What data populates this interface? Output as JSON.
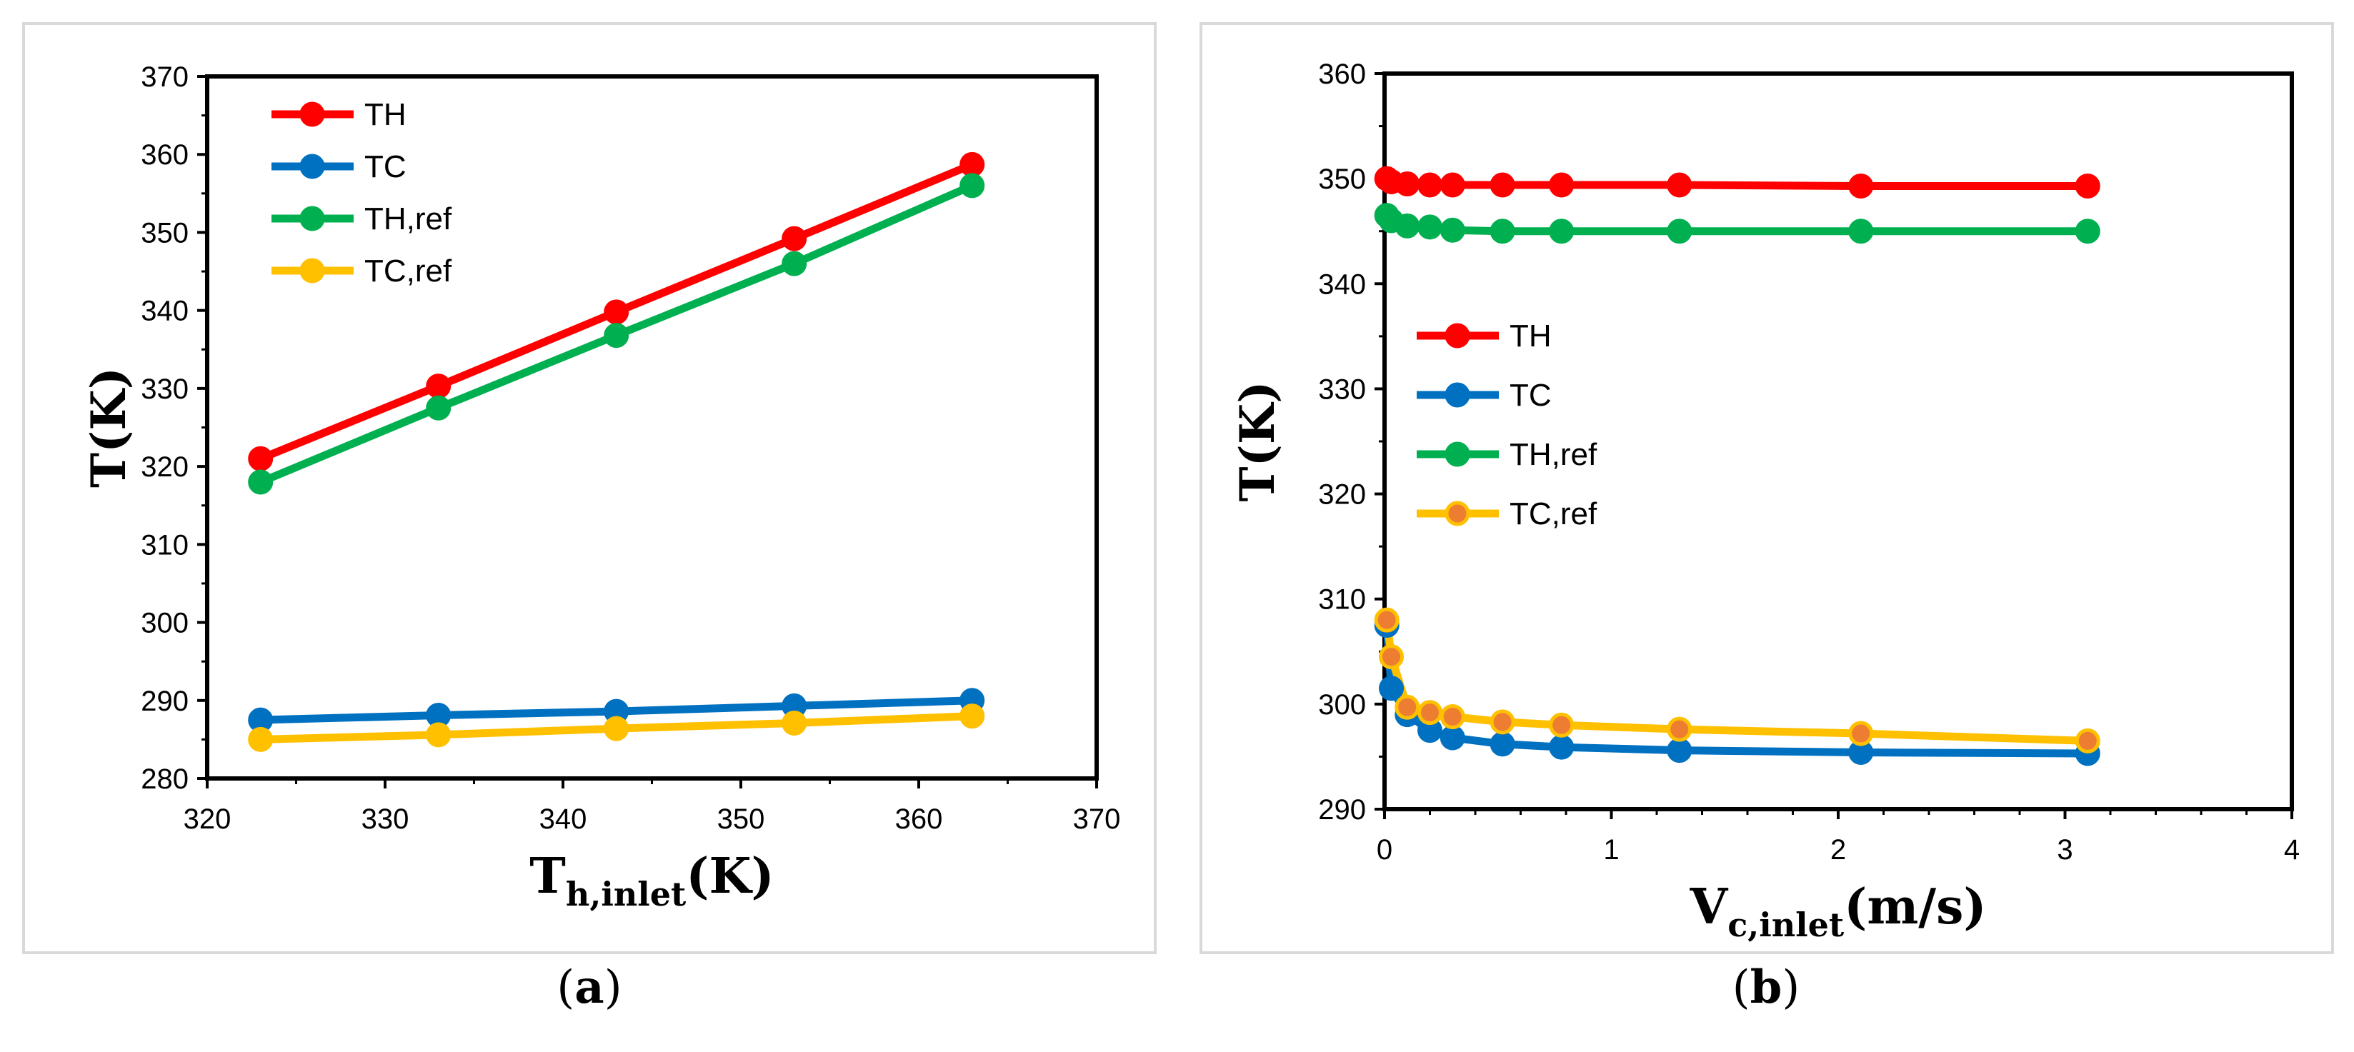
{
  "panels": [
    {
      "id": "a",
      "caption_letter": "a",
      "chart_data": {
        "type": "line",
        "xlabel": "T",
        "xlabel_sub": "h,inlet",
        "xlabel_unit": "(K)",
        "ylabel": "T(K)",
        "xlim": [
          320,
          370
        ],
        "ylim": [
          280,
          370
        ],
        "xticks": [
          320,
          330,
          340,
          350,
          360,
          370
        ],
        "yticks": [
          280,
          290,
          300,
          310,
          320,
          330,
          340,
          350,
          360,
          370
        ],
        "legend_position": "top-left",
        "series": [
          {
            "name": "TH",
            "color": "#ff0000",
            "x": [
              323,
              333,
              343,
              353,
              363
            ],
            "y": [
              321,
              330.3,
              339.8,
              349.2,
              358.7
            ]
          },
          {
            "name": "TC",
            "color": "#0070c0",
            "x": [
              323,
              333,
              343,
              353,
              363
            ],
            "y": [
              287.5,
              288.1,
              288.6,
              289.3,
              290.0
            ]
          },
          {
            "name": "TH,ref",
            "color": "#00b050",
            "x": [
              323,
              333,
              343,
              353,
              363
            ],
            "y": [
              318,
              327.5,
              336.8,
              346.0,
              356.0
            ]
          },
          {
            "name": "TC,ref",
            "color": "#ffc000",
            "x": [
              323,
              333,
              343,
              353,
              363
            ],
            "y": [
              285,
              285.6,
              286.4,
              287.1,
              288.0
            ]
          }
        ]
      }
    },
    {
      "id": "b",
      "caption_letter": "b",
      "chart_data": {
        "type": "line",
        "xlabel": "V",
        "xlabel_sub": "c,inlet",
        "xlabel_unit": "(m/s)",
        "ylabel": "T(K)",
        "xlim": [
          0,
          4
        ],
        "ylim": [
          290,
          360
        ],
        "xticks": [
          0,
          1,
          2,
          3,
          4
        ],
        "yticks": [
          290,
          300,
          310,
          320,
          330,
          340,
          350,
          360
        ],
        "legend_position": "center-left",
        "series": [
          {
            "name": "TH",
            "color": "#ff0000",
            "marker_fill": "#ff0000",
            "x": [
              0.01,
              0.03,
              0.1,
              0.2,
              0.3,
              0.52,
              0.78,
              1.3,
              2.1,
              3.1
            ],
            "y": [
              350.0,
              349.7,
              349.5,
              349.4,
              349.4,
              349.4,
              349.4,
              349.4,
              349.3,
              349.3
            ]
          },
          {
            "name": "TC",
            "color": "#0070c0",
            "marker_fill": "#0070c0",
            "x": [
              0.01,
              0.03,
              0.1,
              0.2,
              0.3,
              0.52,
              0.78,
              1.3,
              2.1,
              3.1
            ],
            "y": [
              307.5,
              301.5,
              299.0,
              297.5,
              296.8,
              296.2,
              295.9,
              295.6,
              295.4,
              295.3
            ]
          },
          {
            "name": "TH,ref",
            "color": "#00b050",
            "marker_fill": "#00b050",
            "x": [
              0.01,
              0.03,
              0.1,
              0.2,
              0.3,
              0.52,
              0.78,
              1.3,
              2.1,
              3.1
            ],
            "y": [
              346.5,
              346.0,
              345.5,
              345.4,
              345.1,
              345.0,
              345.0,
              345.0,
              345.0,
              345.0
            ]
          },
          {
            "name": "TC,ref",
            "color": "#ffc000",
            "marker_fill": "#ed7d31",
            "x": [
              0.01,
              0.03,
              0.1,
              0.2,
              0.3,
              0.52,
              0.78,
              1.3,
              2.1,
              3.1
            ],
            "y": [
              308.0,
              304.5,
              299.7,
              299.2,
              298.8,
              298.3,
              298.0,
              297.6,
              297.2,
              296.5
            ]
          }
        ]
      }
    }
  ]
}
